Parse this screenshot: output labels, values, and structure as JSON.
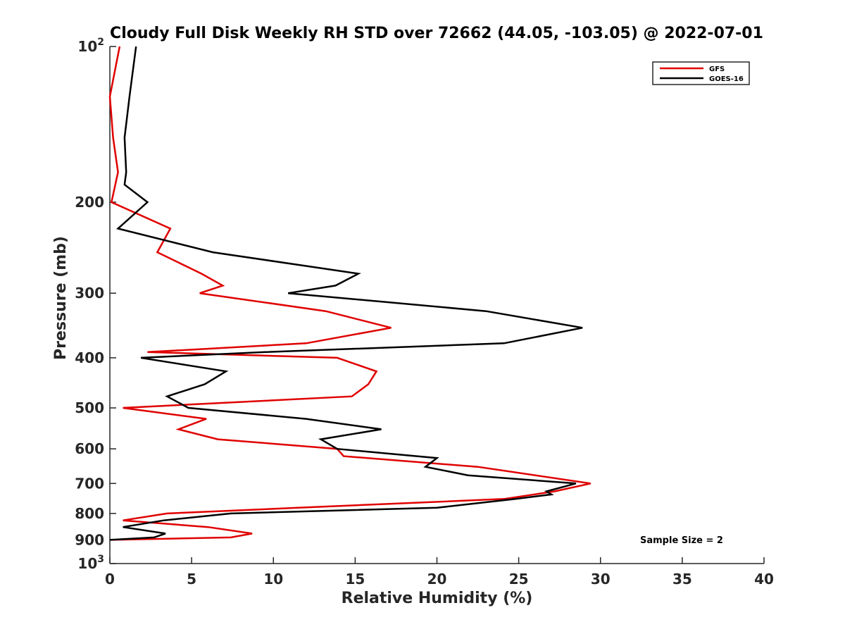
{
  "chart_data": {
    "type": "line",
    "title": "Cloudy Full Disk Weekly RH STD over 72662 (44.05, -103.05) @ 2022-07-01",
    "xlabel": "Relative Humidity (%)",
    "ylabel": "Pressure (mb)",
    "xlim": [
      0,
      40
    ],
    "ylim": [
      100,
      1000
    ],
    "y_scale": "log",
    "y_reversed": true,
    "grid": false,
    "legend_placement": "top-right",
    "x_ticks": [
      0,
      5,
      10,
      15,
      20,
      25,
      30,
      35,
      40
    ],
    "x_tick_labels": [
      "0",
      "5",
      "10",
      "15",
      "20",
      "25",
      "30",
      "35",
      "40"
    ],
    "y_ticks": [
      {
        "value": 100,
        "base": "10",
        "exp": "2"
      },
      {
        "value": 200,
        "label": "200"
      },
      {
        "value": 300,
        "label": "300"
      },
      {
        "value": 400,
        "label": "400"
      },
      {
        "value": 500,
        "label": "500"
      },
      {
        "value": 600,
        "label": "600"
      },
      {
        "value": 700,
        "label": "700"
      },
      {
        "value": 800,
        "label": "800"
      },
      {
        "value": 900,
        "label": "900"
      },
      {
        "value": 1000,
        "base": "10",
        "exp": "3"
      }
    ],
    "series": [
      {
        "name": "GFS",
        "color": "#e00000",
        "points": [
          [
            0.6,
            100
          ],
          [
            0.0,
            125
          ],
          [
            0.2,
            150
          ],
          [
            0.5,
            175
          ],
          [
            0.1,
            200
          ],
          [
            3.7,
            225
          ],
          [
            2.9,
            250
          ],
          [
            5.6,
            275
          ],
          [
            6.9,
            290
          ],
          [
            5.5,
            300
          ],
          [
            13.2,
            325
          ],
          [
            17.2,
            350
          ],
          [
            12.0,
            375
          ],
          [
            2.3,
            390
          ],
          [
            13.9,
            400
          ],
          [
            16.3,
            425
          ],
          [
            15.8,
            450
          ],
          [
            14.8,
            475
          ],
          [
            0.8,
            500
          ],
          [
            5.9,
            525
          ],
          [
            4.2,
            550
          ],
          [
            6.6,
            575
          ],
          [
            13.9,
            600
          ],
          [
            14.3,
            620
          ],
          [
            22.5,
            650
          ],
          [
            29.4,
            700
          ],
          [
            27.2,
            725
          ],
          [
            24.1,
            750
          ],
          [
            11.5,
            780
          ],
          [
            3.5,
            800
          ],
          [
            0.8,
            825
          ],
          [
            6.0,
            850
          ],
          [
            8.7,
            875
          ],
          [
            7.4,
            890
          ],
          [
            0.0,
            900
          ]
        ]
      },
      {
        "name": "GOES-16",
        "color": "#000000",
        "points": [
          [
            1.6,
            100
          ],
          [
            1.2,
            125
          ],
          [
            0.9,
            150
          ],
          [
            1.0,
            175
          ],
          [
            0.9,
            185
          ],
          [
            2.3,
            200
          ],
          [
            0.5,
            225
          ],
          [
            6.3,
            250
          ],
          [
            15.2,
            275
          ],
          [
            13.8,
            290
          ],
          [
            10.9,
            300
          ],
          [
            23.0,
            325
          ],
          [
            28.9,
            350
          ],
          [
            24.1,
            375
          ],
          [
            9.5,
            390
          ],
          [
            1.9,
            400
          ],
          [
            7.1,
            425
          ],
          [
            5.8,
            450
          ],
          [
            3.5,
            475
          ],
          [
            4.8,
            500
          ],
          [
            12.0,
            525
          ],
          [
            16.6,
            550
          ],
          [
            12.9,
            575
          ],
          [
            13.9,
            600
          ],
          [
            20.0,
            625
          ],
          [
            19.3,
            650
          ],
          [
            21.9,
            675
          ],
          [
            28.5,
            700
          ],
          [
            26.7,
            725
          ],
          [
            27.0,
            735
          ],
          [
            24.8,
            750
          ],
          [
            20.0,
            780
          ],
          [
            7.4,
            800
          ],
          [
            3.3,
            825
          ],
          [
            0.8,
            850
          ],
          [
            3.4,
            875
          ],
          [
            2.7,
            890
          ],
          [
            0.0,
            900
          ]
        ]
      }
    ],
    "annotation": "Sample Size = 2"
  }
}
